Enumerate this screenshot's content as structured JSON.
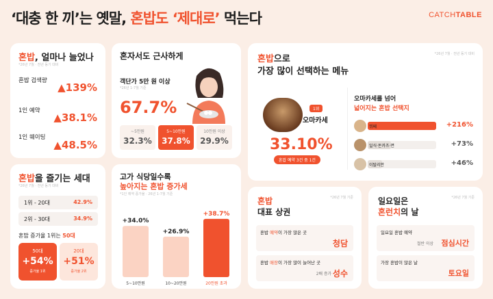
{
  "header": {
    "q1": "‘대충 한 끼’는 옛말, ",
    "t2": "혼밥도 ",
    "q2": "‘제대로’",
    "t3": " 먹는다",
    "logo_a": "CATCH",
    "logo_b": "TABLE"
  },
  "c1": {
    "title_a": "혼밥",
    "title_b": ", 얼마나 늘었나",
    "note": "*26년 7월 · 전년 동기 대비",
    "rows": [
      {
        "label": "혼밥 검색량",
        "value": "139%"
      },
      {
        "label": "1인 예약",
        "value": "38.1%"
      },
      {
        "label": "1인 웨이팅",
        "value": "48.5%"
      }
    ]
  },
  "c2": {
    "title": "혼자서도 근사하게",
    "sub": "객단가 5만 원 이상",
    "note": "*26년 1-7월 기준",
    "big": "67.7%",
    "opts": [
      {
        "label": "~5만원",
        "value": "32.3%"
      },
      {
        "label": "5~10만원",
        "value": "37.8%"
      },
      {
        "label": "10만원 이상",
        "value": "29.9%"
      }
    ]
  },
  "c3": {
    "title_a": "혼밥",
    "title_b": "으로",
    "title2": "가장 많이 선택하는 메뉴",
    "note": "*26년 7월 · 전년 동기 대비",
    "rank": "1위",
    "menu": "오마카세",
    "pct": "33.10%",
    "pill": "혼밥 예약 3건 중 1건",
    "r_title1": "오마카세를 넘어",
    "r_title2": "넓어지는 혼밥 선택지",
    "bars": [
      {
        "label": "뷔페",
        "value": "+216%",
        "pct": 216
      },
      {
        "label": "일식·돈카츠·면",
        "value": "+73%",
        "pct": 73
      },
      {
        "label": "이탈리안",
        "value": "+46%",
        "pct": 46
      }
    ]
  },
  "c4": {
    "title_a": "혼밥",
    "title_b": "을 즐기는 세대",
    "note": "*26년 7월 · 전년 동기 대비",
    "rows": [
      {
        "label": "1위 - 20대",
        "value": "42.9%"
      },
      {
        "label": "2위 - 30대",
        "value": "34.9%"
      }
    ],
    "growth_label": "혼밥 증가율 1위는 ",
    "growth_val": "50대",
    "boxes": [
      {
        "age": "50대",
        "val": "+54%",
        "sub": "증가율 1위"
      },
      {
        "age": "20대",
        "val": "+51%",
        "sub": "증가율 2위"
      }
    ]
  },
  "c5": {
    "title1": "고가 식당일수록",
    "title2": "높아지는 혼밥 증가세",
    "note": "*1인 예약 증가율 · 26년 1-7월 기준",
    "chart_data": {
      "type": "bar",
      "categories": [
        "5~10만원",
        "10~20만원",
        "20만원 초과"
      ],
      "values": [
        34.0,
        26.9,
        38.7
      ],
      "labels": [
        "+34.0%",
        "+26.9%",
        "+38.7%"
      ],
      "colors": [
        "#fbd3c3",
        "#fbd3c3",
        "#f0522e"
      ]
    }
  },
  "c6": {
    "title_a": "혼밥",
    "title_b": "대표 상권",
    "note": "*26년 7월 기준",
    "row1_label_a": "혼밥 ",
    "row1_label_b": "예약",
    "row1_label_c": "이 가장 많은 곳",
    "row1_value": "청담",
    "row2_label_a": "혼밥 ",
    "row2_label_b": "매장",
    "row2_label_c": "이 가장 많이 늘어난 곳",
    "row2_pre": "2배 증가",
    "row2_value": "성수"
  },
  "c7": {
    "title1": "일요일은",
    "title2_a": "혼런치",
    "title2_b": "의 날",
    "note": "*26년 7월 기준",
    "row1_label": "일요일 혼밥 예약",
    "row1_pre": "절반 이상",
    "row1_value": "점심시간",
    "row2_label": "가장 혼밥이 많은 날",
    "row2_value": "토요일"
  }
}
